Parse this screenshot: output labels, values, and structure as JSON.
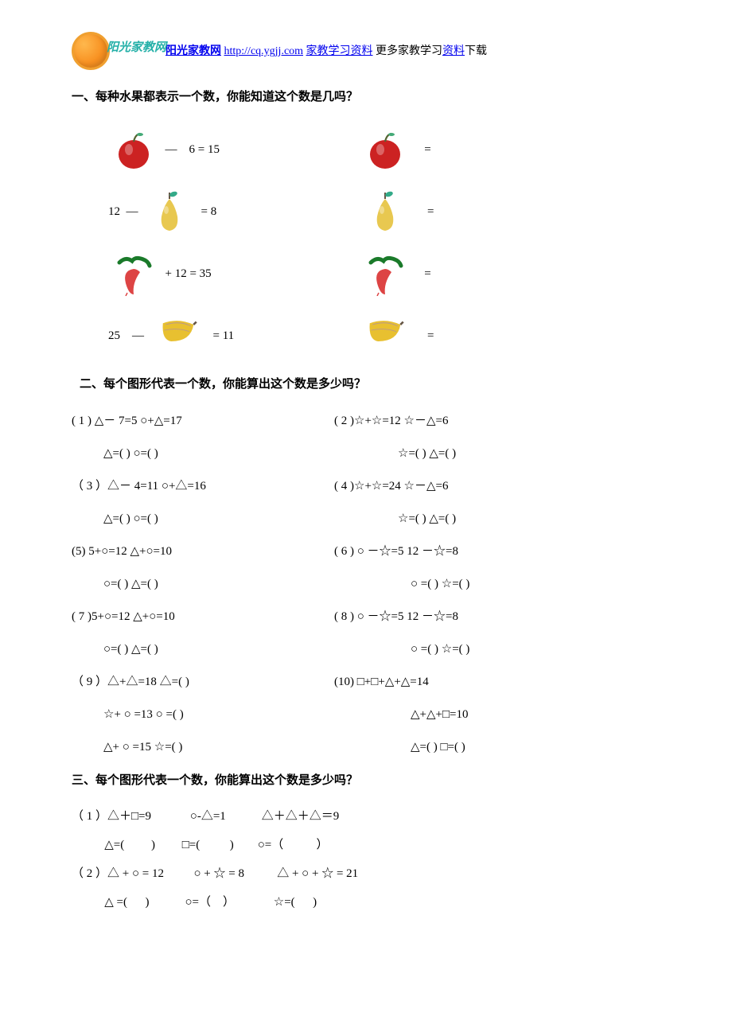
{
  "header": {
    "logo_text": "阳光家教网",
    "brand_link": "阳光家教网",
    "url": "http://cq.ygjj.com",
    "mid_text": "家教学习资料",
    "tail_text": "更多家教学习资料下载"
  },
  "section1": {
    "title": "一、每种水果都表示一个数，你能知道这个数是几吗？",
    "rows": [
      {
        "left_pre": "",
        "left_post": "  —    6 = 15",
        "right_post": "   ="
      },
      {
        "left_pre": "12  —  ",
        "left_post": "  = 8",
        "right_post": "    ="
      },
      {
        "left_pre": "",
        "left_post": "  + 12 = 35",
        "right_post": "   ="
      },
      {
        "left_pre": "25    —   ",
        "left_post": "   = 11",
        "right_post": "    ="
      }
    ]
  },
  "section2": {
    "title": "二、每个图形代表一个数，你能算出这个数是多少吗？",
    "rows": [
      [
        "( 1 ) △－ 7=5       ○+△=17",
        "( 2 )☆+☆=12       ☆－△=6"
      ],
      [
        "△=(      )      ○=(        )",
        "☆=(        )     △=(        )"
      ],
      [
        "（ 3 ）△－ 4=11       ○+△=16",
        "( 4 )☆+☆=24       ☆－△=6"
      ],
      [
        "△=(      )      ○=(        )",
        "☆=(        )     △=(        )"
      ],
      [
        "(5) 5+○=12    △+○=10",
        "( 6 ) ○ －☆=5    12 －☆=8"
      ],
      [
        "○=(    )    △=(      )",
        "○ =(        )    ☆=(        )"
      ],
      [
        "( 7 )5+○=12    △+○=10",
        "( 8 ) ○ －☆=5    12 －☆=8"
      ],
      [
        "○=(    )    △=(      )",
        "○ =(        )    ☆=(        )"
      ],
      [
        "（ 9 ）△+△=18       △=(        )",
        "(10)  □+□+△+△=14"
      ],
      [
        "☆+ ○ =13      ○ =(        )",
        "△+△+□=10"
      ],
      [
        "△+ ○ =15      ☆=(        )",
        "△=(       )    □=(        )"
      ]
    ],
    "indents_left": [
      0,
      1,
      0,
      1,
      0,
      1,
      0,
      1,
      0,
      1,
      1
    ],
    "indents_right": [
      0,
      1,
      0,
      1,
      0,
      2,
      0,
      2,
      0,
      2,
      2
    ]
  },
  "section3": {
    "title": "三、每个图形代表一个数，你能算出这个数是多少吗？",
    "rows": [
      "（ 1 ）△＋□=9             ○-△=1            △＋△＋△＝9",
      "           △=(         )         □=(          )        ○=（           ）",
      "（ 2 ）△ + ○ = 12          ○ + ☆ = 8           △ + ○ + ☆ = 21",
      "           △ =(      )            ○=（    ）             ☆=(      )"
    ]
  },
  "colors": {
    "background": "#ffffff",
    "text": "#000000",
    "link": "#0000ee",
    "logo_border": "#f0a030",
    "logo_text": "#25b0a8"
  }
}
